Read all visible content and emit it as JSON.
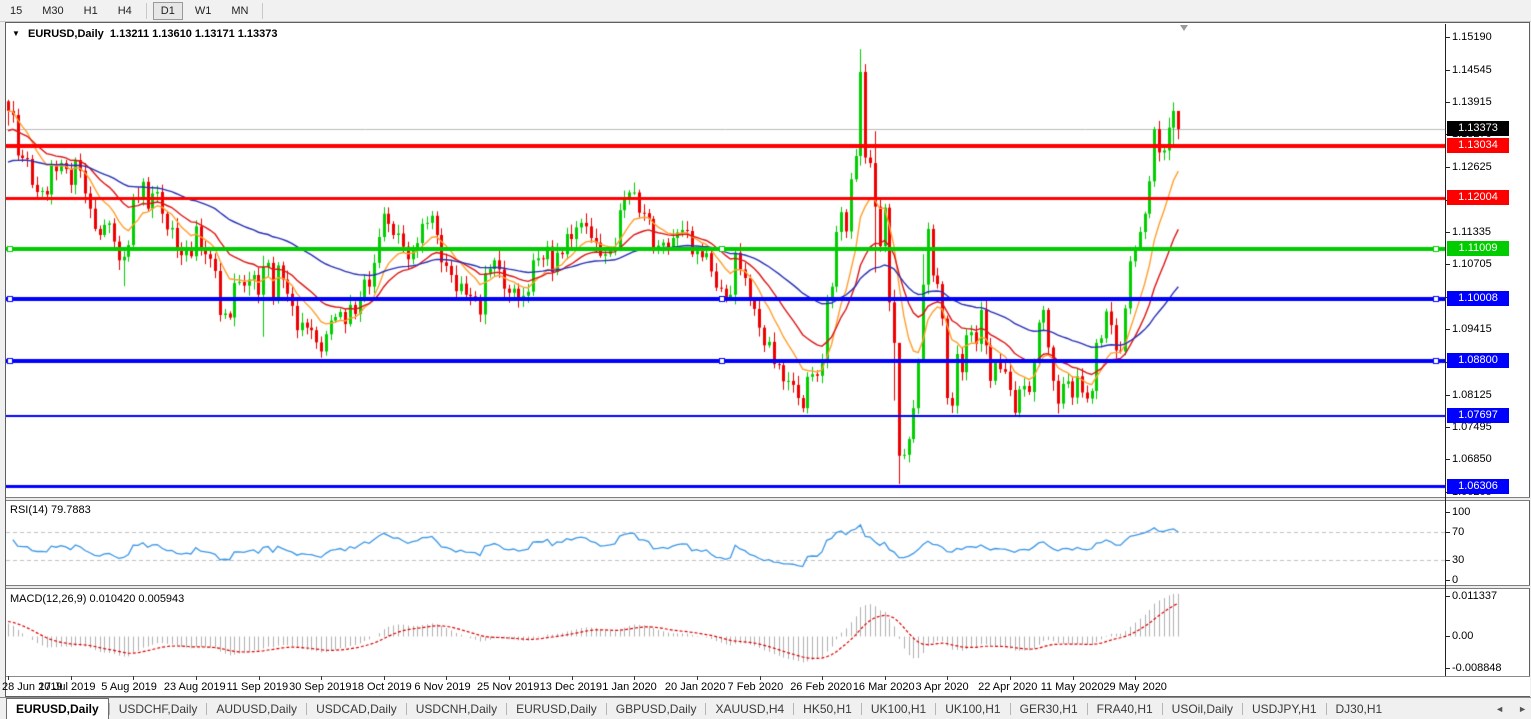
{
  "toolbar": {
    "timeframes": [
      {
        "label": "15",
        "active": false
      },
      {
        "label": "M30",
        "active": false
      },
      {
        "label": "H1",
        "active": false
      },
      {
        "label": "H4",
        "active": false
      },
      {
        "label": "D1",
        "active": true
      },
      {
        "label": "W1",
        "active": false
      },
      {
        "label": "MN",
        "active": false
      }
    ]
  },
  "titles": {
    "main_glyph": "▼",
    "main": "EURUSD,Daily",
    "main_ohlc": "1.13211 1.13610 1.13171 1.13373",
    "rsi": "RSI(14) 79.7883",
    "macd": "MACD(12,26,9) 0.010420 0.005943"
  },
  "tabs": {
    "scroll_left": "◄",
    "scroll_right": "►",
    "items": [
      {
        "label": "EURUSD,Daily",
        "active": true
      },
      {
        "label": "USDCHF,Daily",
        "active": false
      },
      {
        "label": "AUDUSD,Daily",
        "active": false
      },
      {
        "label": "USDCAD,Daily",
        "active": false
      },
      {
        "label": "USDCNH,Daily",
        "active": false
      },
      {
        "label": "EURUSD,Daily",
        "active": false
      },
      {
        "label": "GBPUSD,Daily",
        "active": false
      },
      {
        "label": "XAUUSD,H4",
        "active": false
      },
      {
        "label": "HK50,H1",
        "active": false
      },
      {
        "label": "UK100,H1",
        "active": false
      },
      {
        "label": "UK100,H1",
        "active": false
      },
      {
        "label": "GER30,H1",
        "active": false
      },
      {
        "label": "FRA40,H1",
        "active": false
      },
      {
        "label": "USOil,Daily",
        "active": false
      },
      {
        "label": "USDJPY,H1",
        "active": false
      },
      {
        "label": "DJ30,H1",
        "active": false
      }
    ]
  },
  "colors": {
    "bull": "#00CE00",
    "bear": "#EE0000",
    "ma_fast": "#FF9E2C",
    "ma_mid": "#DC1414",
    "ma_slow": "#2830B4",
    "rsi_line": "#3C96E6",
    "rsi_levels": "#C0C0C0",
    "macd_hist": "#B0B0B0",
    "macd_signal": "#DC0000",
    "current_price_line": "#BBBBBB",
    "current_price_bg": "#000000",
    "red_level": "#FF0000",
    "green_level": "#00CC00",
    "blue_level": "#0000FF"
  },
  "chart_data": {
    "type": "candlestick",
    "symbol_title": "EURUSD,Daily",
    "ohlc_display": [
      "1.13211",
      "1.13610",
      "1.13171",
      "1.13373"
    ],
    "ylim": [
      1.06205,
      1.1519
    ],
    "price_ticks": [
      "1.15190",
      "1.14545",
      "1.13915",
      "1.13270",
      "1.12625",
      "1.11980",
      "1.11335",
      "1.10705",
      "1.10060",
      "1.09415",
      "1.08770",
      "1.08125",
      "1.07495",
      "1.06850",
      "1.06205"
    ],
    "date_ticks": [
      "28 Jun 2019",
      "17 Jul 2019",
      "5 Aug 2019",
      "23 Aug 2019",
      "11 Sep 2019",
      "30 Sep 2019",
      "18 Oct 2019",
      "6 Nov 2019",
      "25 Nov 2019",
      "13 Dec 2019",
      "1 Jan 2020",
      "20 Jan 2020",
      "7 Feb 2020",
      "26 Feb 2020",
      "16 Mar 2020",
      "3 Apr 2020",
      "22 Apr 2020",
      "11 May 2020",
      "29 May 2020"
    ],
    "bars": 244,
    "first_open": 1.1392,
    "wick_seed": 7,
    "closes": [
      1.1373,
      1.1365,
      1.1285,
      1.128,
      1.1278,
      1.1227,
      1.1213,
      1.1215,
      1.1208,
      1.1267,
      1.1254,
      1.127,
      1.1258,
      1.1227,
      1.1276,
      1.1255,
      1.121,
      1.118,
      1.114,
      1.1128,
      1.1148,
      1.1151,
      1.1115,
      1.1078,
      1.1085,
      1.1108,
      1.1203,
      1.12,
      1.1233,
      1.118,
      1.121,
      1.1213,
      1.117,
      1.1139,
      1.1142,
      1.11,
      1.1088,
      1.1098,
      1.1086,
      1.1145,
      1.11,
      1.109,
      1.1081,
      1.1057,
      1.097,
      1.0973,
      1.0965,
      1.1033,
      1.1035,
      1.1028,
      1.104,
      1.1049,
      1.101,
      1.1065,
      1.1073,
      1.1003,
      1.1068,
      1.104,
      1.1012,
      1.0988,
      1.094,
      1.0955,
      1.0945,
      1.094,
      1.0916,
      1.0898,
      1.0932,
      1.0959,
      1.0966,
      1.0976,
      1.0952,
      1.099,
      1.0972,
      1.1005,
      1.104,
      1.1026,
      1.1073,
      1.1124,
      1.117,
      1.115,
      1.1128,
      1.1131,
      1.1105,
      1.108,
      1.11,
      1.1112,
      1.115,
      1.1152,
      1.1166,
      1.1128,
      1.1074,
      1.1067,
      1.1049,
      1.1017,
      1.1032,
      1.101,
      1.1007,
      1.1005,
      1.0971,
      1.1052,
      1.1061,
      1.1078,
      1.106,
      1.1022,
      1.1014,
      1.1022,
      1.1,
      1.1008,
      1.1016,
      1.1078,
      1.1082,
      1.108,
      1.1105,
      1.1055,
      1.1093,
      1.109,
      1.113,
      1.112,
      1.1143,
      1.1152,
      1.1145,
      1.1122,
      1.1113,
      1.1087,
      1.109,
      1.1096,
      1.1104,
      1.1177,
      1.1199,
      1.1212,
      1.1212,
      1.1172,
      1.1171,
      1.116,
      1.1103,
      1.1107,
      1.1113,
      1.1104,
      1.1122,
      1.1133,
      1.1138,
      1.1136,
      1.109,
      1.1096,
      1.1084,
      1.1092,
      1.1056,
      1.1024,
      1.1022,
      1.1002,
      1.101,
      1.1093,
      1.106,
      1.1043,
      1.1,
      1.0982,
      1.0945,
      1.091,
      1.0917,
      1.0873,
      1.0871,
      1.0839,
      1.084,
      1.0832,
      1.0806,
      1.0786,
      1.0848,
      1.0853,
      1.085,
      1.088,
      1.0999,
      1.1026,
      1.1134,
      1.1173,
      1.1135,
      1.1238,
      1.1284,
      1.145,
      1.1281,
      1.127,
      1.1184,
      1.1106,
      1.1182,
      1.0995,
      1.0915,
      1.0692,
      1.0694,
      1.0725,
      1.0786,
      1.088,
      1.103,
      1.114,
      1.1048,
      1.1031,
      1.0963,
      1.0806,
      1.0791,
      1.0893,
      1.0857,
      1.093,
      1.0936,
      1.0913,
      1.098,
      1.091,
      1.084,
      1.0875,
      1.0863,
      1.0858,
      1.0822,
      1.0777,
      1.0823,
      1.083,
      1.0818,
      1.0875,
      1.0955,
      1.098,
      1.0906,
      1.084,
      1.0795,
      1.0834,
      1.0839,
      1.0807,
      1.0849,
      1.0817,
      1.0805,
      1.082,
      1.0915,
      1.0924,
      1.0977,
      1.095,
      1.09,
      1.0898,
      1.0983,
      1.1076,
      1.1101,
      1.1134,
      1.117,
      1.1234,
      1.1337,
      1.1291,
      1.1295,
      1.134,
      1.1373,
      1.1337
    ],
    "extremes": {
      "0": [
        1.1395,
        1.1344
      ],
      "24": [
        1.1096,
        1.1027
      ],
      "53": [
        1.1087,
        1.0927
      ],
      "165": [
        1.0812,
        1.0778
      ],
      "177": [
        1.1495,
        1.1265
      ],
      "180": [
        1.1333,
        1.1054
      ],
      "184": [
        1.102,
        1.0801
      ],
      "185": [
        1.0832,
        1.0636
      ],
      "190": [
        1.109,
        1.0953
      ],
      "242": [
        1.139,
        1.1306
      ],
      "243": [
        1.1361,
        1.1317
      ]
    },
    "hlines": [
      {
        "price": 1.13034,
        "label": "1.13034",
        "color": "#FF0000",
        "thickness": 4,
        "handles": false
      },
      {
        "price": 1.12004,
        "label": "1.12004",
        "color": "#FF0000",
        "thickness": 3,
        "handles": false
      },
      {
        "price": 1.11009,
        "label": "1.11009",
        "color": "#00CC00",
        "thickness": 4,
        "handles": true
      },
      {
        "price": 1.10008,
        "label": "1.10008",
        "color": "#0000FF",
        "thickness": 4,
        "handles": true
      },
      {
        "price": 1.088,
        "label": "1.08800",
        "color": "#0000FF",
        "thickness": 4,
        "handles": true
      },
      {
        "price": 1.07697,
        "label": "1.07697",
        "color": "#0000FF",
        "thickness": 2,
        "handles": false
      },
      {
        "price": 1.06306,
        "label": "1.06306",
        "color": "#0000FF",
        "thickness": 3,
        "handles": false
      }
    ],
    "current_price": {
      "price": 1.13373,
      "label": "1.13373"
    },
    "ma": [
      {
        "period": 10,
        "init": 1.1373,
        "color": "#FF9E2C"
      },
      {
        "period": 21,
        "init": 1.133,
        "color": "#DC1414"
      },
      {
        "period": 55,
        "init": 1.1268,
        "color": "#2830B4"
      }
    ],
    "rsi": {
      "title": "RSI(14) 79.7883",
      "period": 14,
      "value": "79.7883",
      "init_gain": 0.002,
      "init_loss": 0.0013,
      "ticks": [
        "100",
        "70",
        "30",
        "0"
      ],
      "levels": [
        70,
        30
      ]
    },
    "macd": {
      "title": "MACD(12,26,9) 0.010420 0.005943",
      "fast": 12,
      "slow": 26,
      "signal": 9,
      "init_fast": 1.142,
      "init_slow": 1.1378,
      "init_signal": 0.0042,
      "values_display": [
        "0.010420",
        "0.005943"
      ],
      "ticks": [
        "0.011337",
        "0.00",
        "-0.008848"
      ],
      "clamp": [
        -0.0095,
        0.0118
      ]
    }
  }
}
